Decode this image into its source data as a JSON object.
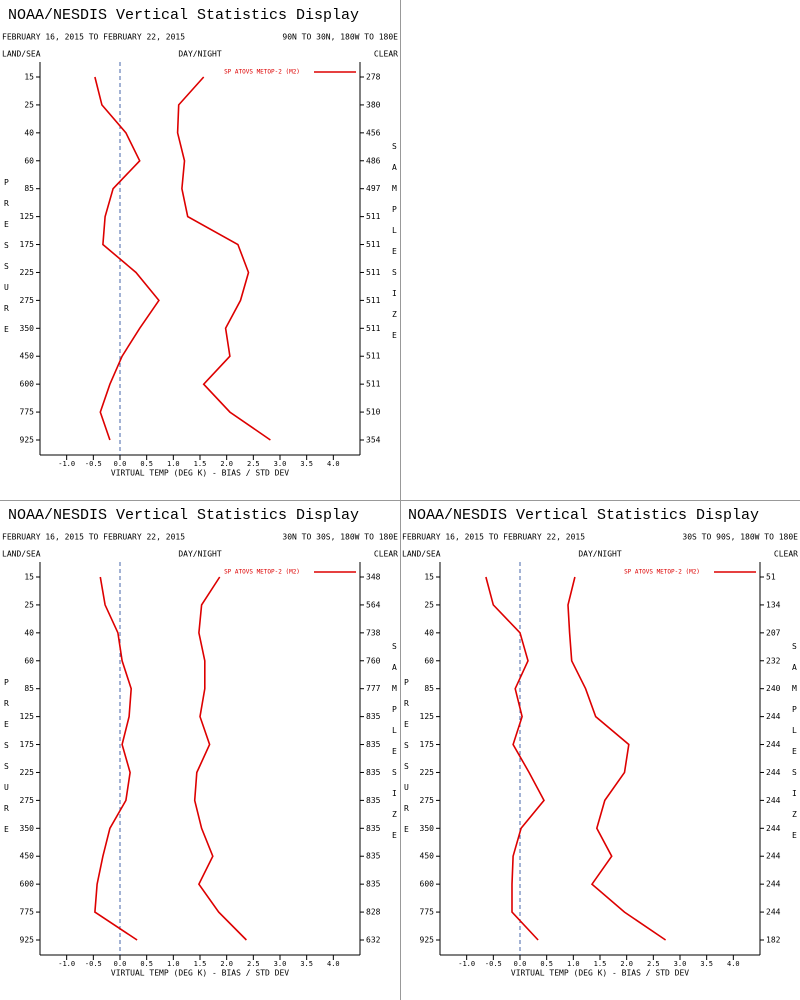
{
  "chart_data": [
    {
      "type": "line",
      "title": "NOAA/NESDIS Vertical Statistics Display",
      "subtitle": "FEBRUARY 16, 2015 TO FEBRUARY 22, 2015",
      "region": "90N TO 30N, 180W TO 180E",
      "land_sea": "LAND/SEA",
      "day_night": "DAY/NIGHT",
      "clear": "CLEAR",
      "ylabel": "PRESSURE",
      "y2label": [
        "SAMPLE",
        "SIZE"
      ],
      "xlabel": "VIRTUAL TEMP (DEG K) - BIAS / STD DEV",
      "categories": [
        "15",
        "25",
        "40",
        "60",
        "85",
        "125",
        "175",
        "225",
        "275",
        "350",
        "450",
        "600",
        "775",
        "925"
      ],
      "sample_size": [
        278,
        380,
        456,
        486,
        497,
        511,
        511,
        511,
        511,
        511,
        511,
        511,
        510,
        354
      ],
      "series": [
        {
          "name": "SP ATOVS METOP-2 (M2)",
          "color": "#dd0000",
          "values": [
            -0.47,
            -0.34,
            0.11,
            0.37,
            -0.13,
            -0.28,
            -0.32,
            0.3,
            0.73,
            0.37,
            0.04,
            -0.19,
            -0.37,
            -0.19
          ],
          "std_dev": [
            1.57,
            1.1,
            1.08,
            1.21,
            1.16,
            1.27,
            2.21,
            2.41,
            2.26,
            1.98,
            2.06,
            1.57,
            2.06,
            2.82
          ]
        }
      ],
      "xlim": [
        -1.5,
        4.5
      ],
      "xticks": [
        {
          "value": -1,
          "label": "-1.0"
        },
        -0.5,
        {
          "value": 0,
          "label": "0.0"
        },
        0.5,
        {
          "value": 1,
          "label": "1.0"
        },
        1.5,
        {
          "value": 2,
          "label": "2.0"
        },
        2.5,
        {
          "value": 3,
          "label": "3.0"
        },
        3.5,
        {
          "value": 4,
          "label": "4.0"
        }
      ]
    },
    {
      "type": "line",
      "title": "NOAA/NESDIS Vertical Statistics Display",
      "subtitle": "FEBRUARY 16, 2015 TO FEBRUARY 22, 2015",
      "region": "30N TO 30S, 180W TO 180E",
      "land_sea": "LAND/SEA",
      "day_night": "DAY/NIGHT",
      "clear": "CLEAR",
      "ylabel": "PRESSURE",
      "y2label": [
        "SAMPLE",
        "SIZE"
      ],
      "xlabel": "VIRTUAL TEMP (DEG K) - BIAS / STD DEV",
      "categories": [
        "15",
        "25",
        "40",
        "60",
        "85",
        "125",
        "175",
        "225",
        "275",
        "350",
        "450",
        "600",
        "775",
        "925"
      ],
      "sample_size": [
        348,
        564,
        738,
        760,
        777,
        835,
        835,
        835,
        835,
        835,
        835,
        835,
        828,
        632
      ],
      "series": [
        {
          "name": "SP ATOVS METOP-2 (M2)",
          "color": "#dd0000",
          "values": [
            -0.37,
            -0.28,
            -0.04,
            0.04,
            0.21,
            0.17,
            0.04,
            0.19,
            0.11,
            -0.19,
            -0.32,
            -0.43,
            -0.47,
            0.32
          ],
          "std_dev": [
            1.87,
            1.53,
            1.48,
            1.59,
            1.59,
            1.5,
            1.68,
            1.44,
            1.4,
            1.53,
            1.74,
            1.48,
            1.85,
            2.37
          ]
        }
      ],
      "xlim": [
        -1.5,
        4.5
      ],
      "xticks": [
        {
          "value": -1,
          "label": "-1.0"
        },
        -0.5,
        {
          "value": 0,
          "label": "0.0"
        },
        0.5,
        {
          "value": 1,
          "label": "1.0"
        },
        1.5,
        {
          "value": 2,
          "label": "2.0"
        },
        2.5,
        {
          "value": 3,
          "label": "3.0"
        },
        3.5,
        {
          "value": 4,
          "label": "4.0"
        }
      ]
    },
    {
      "type": "line",
      "title": "NOAA/NESDIS Vertical Statistics Display",
      "subtitle": "FEBRUARY 16, 2015 TO FEBRUARY 22, 2015",
      "region": "30S TO 90S, 180W TO 180E",
      "land_sea": "LAND/SEA",
      "day_night": "DAY/NIGHT",
      "clear": "CLEAR",
      "ylabel": "PRESSURE",
      "y2label": [
        "SAMPLE",
        "SIZE"
      ],
      "xlabel": "VIRTUAL TEMP (DEG K) - BIAS / STD DEV",
      "categories": [
        "15",
        "25",
        "40",
        "60",
        "85",
        "125",
        "175",
        "225",
        "275",
        "350",
        "450",
        "600",
        "775",
        "925"
      ],
      "sample_size": [
        51,
        134,
        207,
        232,
        240,
        244,
        244,
        244,
        244,
        244,
        244,
        244,
        244,
        182
      ],
      "series": [
        {
          "name": "SP ATOVS METOP-2 (M2)",
          "color": "#dd0000",
          "values": [
            -0.64,
            -0.5,
            0,
            0.15,
            -0.09,
            0.04,
            -0.13,
            0.17,
            0.45,
            0.02,
            -0.13,
            -0.15,
            -0.15,
            0.34
          ],
          "std_dev": [
            1.03,
            0.9,
            0.93,
            0.97,
            1.23,
            1.42,
            2.04,
            1.96,
            1.59,
            1.44,
            1.72,
            1.35,
            1.96,
            2.73
          ]
        }
      ],
      "xlim": [
        -1.5,
        4.5
      ],
      "xticks": [
        {
          "value": -1,
          "label": "-1.0"
        },
        -0.5,
        {
          "value": 0,
          "label": "0.0"
        },
        0.5,
        {
          "value": 1,
          "label": "1.0"
        },
        1.5,
        {
          "value": 2,
          "label": "2.0"
        },
        2.5,
        {
          "value": 3,
          "label": "3.0"
        },
        3.5,
        {
          "value": 4,
          "label": "4.0"
        }
      ]
    }
  ]
}
